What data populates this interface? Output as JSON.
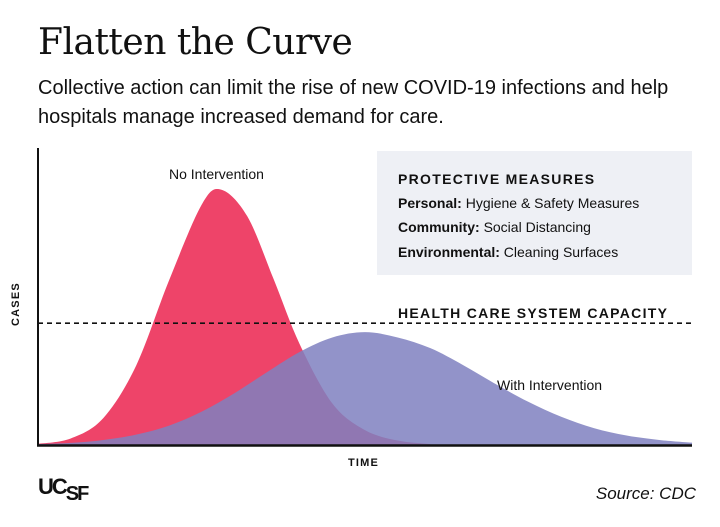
{
  "title": "Flatten the Curve",
  "subtitle": "Collective action can limit the rise of new COVID-19 infections and help hospitals manage increased demand for care.",
  "measures": {
    "heading": "PROTECTIVE MEASURES",
    "items": [
      {
        "label": "Personal:",
        "text": "Hygiene & Safety Measures"
      },
      {
        "label": "Community:",
        "text": "Social Distancing"
      },
      {
        "label": "Environmental:",
        "text": "Cleaning Surfaces"
      }
    ]
  },
  "logo": "UCSF",
  "source": "Source: CDC",
  "chart_data": {
    "type": "area",
    "xlabel": "TIME",
    "ylabel": "CASES",
    "xlim": [
      0,
      100
    ],
    "ylim": [
      0,
      100
    ],
    "ticks": false,
    "grid": false,
    "capacity": {
      "label": "HEALTH CARE SYSTEM CAPACITY",
      "value": 41,
      "style": "dashed"
    },
    "series": [
      {
        "name": "No Intervention",
        "color": "#ee4469",
        "x": [
          0,
          5,
          10,
          15,
          20,
          25,
          28,
          32,
          36,
          40,
          45,
          50,
          55,
          60
        ],
        "y": [
          0.4,
          2.2,
          9.1,
          26.7,
          55.2,
          80.8,
          86,
          77,
          56,
          34,
          14,
          5,
          1.5,
          0.3
        ]
      },
      {
        "name": "With Intervention",
        "color": "#7f80c0",
        "x": [
          0,
          5,
          10,
          15,
          20,
          25,
          30,
          35,
          40,
          45,
          50,
          55,
          60,
          65,
          70,
          75,
          80,
          85,
          90,
          95,
          100
        ],
        "y": [
          0.3,
          0.7,
          1.7,
          3.5,
          6.5,
          11.2,
          17.4,
          24.5,
          31.3,
          36.2,
          38,
          36.2,
          32.6,
          26.9,
          20.5,
          14.5,
          9.5,
          5.7,
          3.2,
          1.7,
          0.8
        ]
      }
    ]
  }
}
